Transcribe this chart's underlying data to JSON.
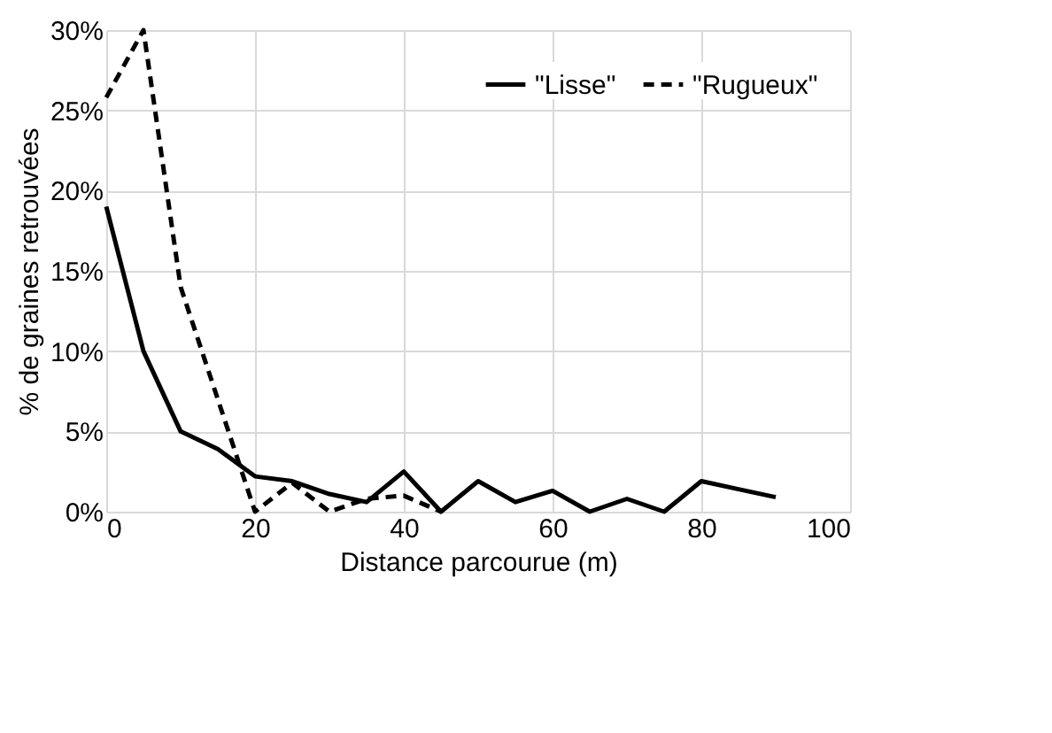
{
  "chart_data": {
    "type": "line",
    "xlabel": "Distance parcourue (m)",
    "ylabel": "% de graines retrouvées",
    "xlim": [
      0,
      100
    ],
    "xticks": [
      0,
      20,
      40,
      60,
      80,
      100
    ],
    "ylim": [
      0,
      30
    ],
    "yticks": [
      {
        "value": 0,
        "label": "0%"
      },
      {
        "value": 5,
        "label": "5%"
      },
      {
        "value": 10,
        "label": "10%"
      },
      {
        "value": 15,
        "label": "15%"
      },
      {
        "value": 20,
        "label": "20%"
      },
      {
        "value": 25,
        "label": "25%"
      },
      {
        "value": 30,
        "label": "30%"
      }
    ],
    "grid": true,
    "legend": "top right",
    "marker": "none",
    "series": [
      {
        "name": "\"Lisse\"",
        "color": "#000000",
        "line_style": "solid",
        "x": [
          0,
          5,
          10,
          15,
          20,
          25,
          30,
          35,
          40,
          45,
          50,
          55,
          60,
          65,
          70,
          75,
          80,
          85,
          90
        ],
        "values": [
          19,
          10,
          5,
          3.9,
          2.2,
          1.9,
          1.1,
          0.6,
          2.5,
          0,
          1.9,
          0.6,
          1.3,
          0,
          0.8,
          0,
          1.9,
          1.4,
          0.9
        ]
      },
      {
        "name": "\"Rugueux\"",
        "color": "#000000",
        "line_style": "dashed",
        "x": [
          0,
          5,
          10,
          15,
          20,
          25,
          30,
          35,
          40,
          45
        ],
        "values": [
          25.8,
          30,
          14,
          7,
          0,
          1.8,
          0,
          0.8,
          1,
          0
        ]
      }
    ]
  }
}
